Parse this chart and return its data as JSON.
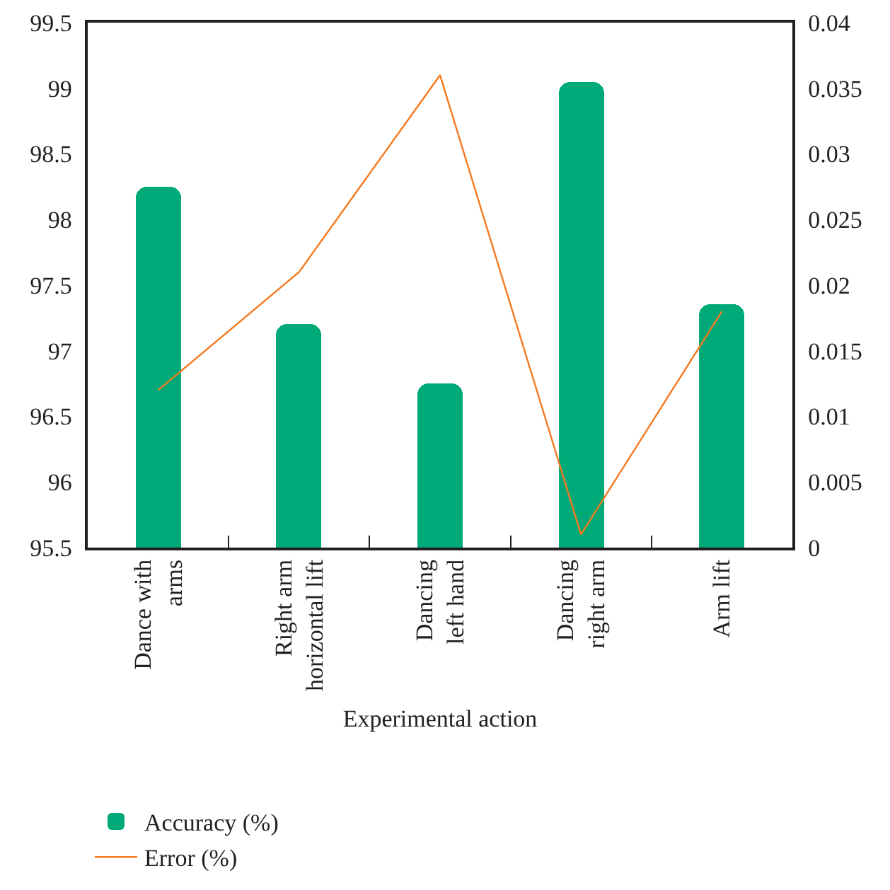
{
  "chart_data": {
    "type": "bar",
    "xlabel": "Experimental action",
    "categories": [
      "Dance with arms",
      "Right arm horizontal lift",
      "Dancing left hand",
      "Dancing right arm",
      "Arm lift"
    ],
    "series": [
      {
        "name": "Accuracy (%)",
        "color": "#00aa78",
        "values": [
          98.25,
          97.2,
          96.75,
          99.05,
          97.35
        ]
      },
      {
        "name": "Error (%)",
        "type": "line",
        "axis": "y2",
        "color": "#f47a20",
        "values": [
          0.012,
          0.021,
          0.036,
          0.001,
          0.018
        ]
      }
    ],
    "ylim": [
      95.5,
      99.5
    ],
    "yticks": [
      95.5,
      96,
      96.5,
      97,
      97.5,
      98,
      98.5,
      99,
      99.5
    ],
    "y2lim": [
      0,
      0.04
    ],
    "y2ticks": [
      0,
      0.005,
      0.01,
      0.015,
      0.02,
      0.025,
      0.03,
      0.035,
      0.04
    ],
    "legend": "bottom",
    "marker": "none"
  }
}
